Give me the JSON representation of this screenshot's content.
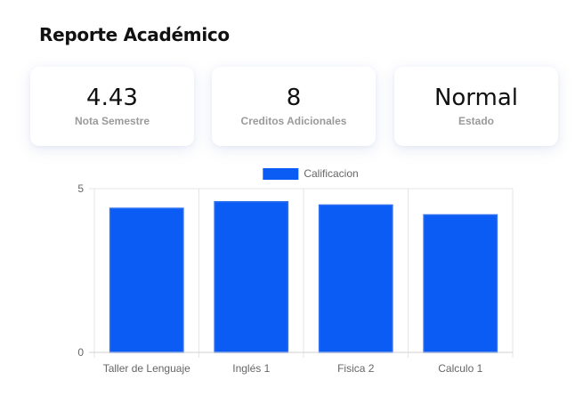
{
  "header": {
    "title": "Reporte Académico"
  },
  "cards": [
    {
      "value": "4.43",
      "label": "Nota Semestre"
    },
    {
      "value": "8",
      "label": "Creditos Adicionales"
    },
    {
      "value": "Normal",
      "label": "Estado"
    }
  ],
  "chart_data": {
    "type": "bar",
    "categories": [
      "Taller de Lenguaje",
      "Inglés 1",
      "Fisica 2",
      "Calculo 1"
    ],
    "series": [
      {
        "name": "Calificacion",
        "values": [
          4.4,
          4.6,
          4.5,
          4.2
        ],
        "color": "#0a5cf5"
      }
    ],
    "ylim": [
      0,
      5
    ],
    "yticks": [
      "0",
      "5"
    ],
    "grid": true,
    "legend": "top"
  }
}
